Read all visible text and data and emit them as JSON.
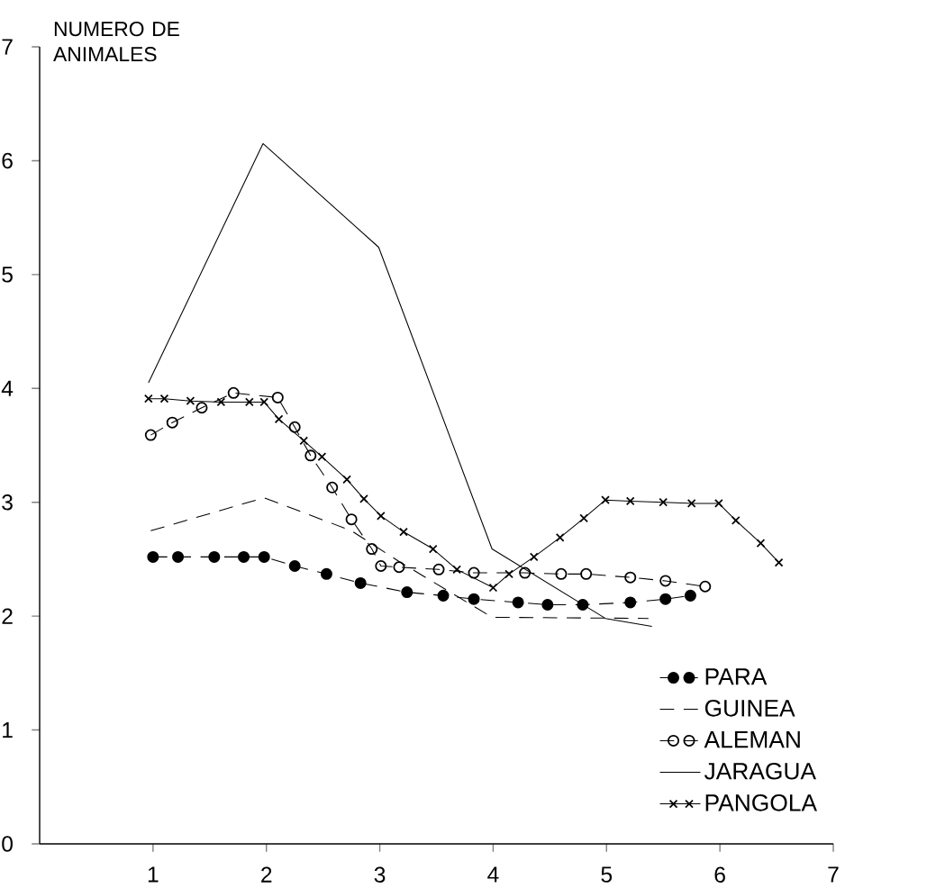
{
  "chart_data": {
    "type": "line",
    "ylabel": "NUMERO DE ANIMALES",
    "xlim": [
      0,
      7
    ],
    "ylim": [
      0,
      7
    ],
    "xticks": [
      1,
      2,
      3,
      4,
      5,
      6,
      7
    ],
    "yticks": [
      0,
      1,
      2,
      3,
      4,
      5,
      6,
      7
    ],
    "grid": false,
    "legend": "bottom right",
    "series": [
      {
        "name": "PARA",
        "color": "#000000",
        "line_style": "dashed",
        "marker": "circle",
        "x": [
          1.0,
          1.22,
          1.54,
          1.8,
          1.98,
          2.25,
          2.53,
          2.83,
          3.24,
          3.56,
          3.83,
          4.22,
          4.48,
          4.79,
          5.21,
          5.52,
          5.74
        ],
        "values": [
          2.52,
          2.52,
          2.52,
          2.52,
          2.52,
          2.44,
          2.37,
          2.29,
          2.21,
          2.18,
          2.15,
          2.12,
          2.1,
          2.1,
          2.12,
          2.15,
          2.18
        ]
      },
      {
        "name": "GUINEA",
        "color": "#000000",
        "line_style": "dashed",
        "marker": "none",
        "x": [
          0.98,
          1.98,
          2.75,
          3.17,
          3.99,
          5.37
        ],
        "values": [
          2.75,
          3.04,
          2.75,
          2.48,
          1.99,
          1.98
        ]
      },
      {
        "name": "ALEMAN",
        "color": "#000000",
        "line_style": "dashed",
        "marker": "circle",
        "x": [
          0.98,
          1.17,
          1.43,
          1.71,
          2.1,
          2.25,
          2.39,
          2.58,
          2.75,
          2.93,
          3.01,
          3.17,
          3.52,
          3.83,
          4.28,
          4.6,
          4.82,
          5.21,
          5.52,
          5.87
        ],
        "values": [
          3.59,
          3.7,
          3.83,
          3.96,
          3.92,
          3.66,
          3.41,
          3.13,
          2.85,
          2.59,
          2.44,
          2.43,
          2.41,
          2.38,
          2.38,
          2.37,
          2.37,
          2.34,
          2.31,
          2.26
        ]
      },
      {
        "name": "JARAGUA",
        "color": "#000000",
        "line_style": "solid",
        "marker": "none",
        "x": [
          0.96,
          1.97,
          2.99,
          3.99,
          4.99,
          5.4
        ],
        "values": [
          4.05,
          6.15,
          5.24,
          2.59,
          1.98,
          1.91
        ]
      },
      {
        "name": "PANGOLA",
        "color": "#000000",
        "line_style": "solid",
        "marker": "cross",
        "x": [
          0.96,
          1.1,
          1.33,
          1.6,
          1.85,
          1.98,
          2.11,
          2.33,
          2.49,
          2.71,
          2.86,
          3.01,
          3.21,
          3.47,
          3.68,
          4.0,
          4.14,
          4.36,
          4.59,
          4.8,
          4.99,
          5.21,
          5.5,
          5.75,
          5.99,
          6.14,
          6.36,
          6.52
        ],
        "values": [
          3.91,
          3.91,
          3.89,
          3.88,
          3.88,
          3.88,
          3.73,
          3.54,
          3.4,
          3.2,
          3.03,
          2.88,
          2.74,
          2.59,
          2.41,
          2.25,
          2.37,
          2.52,
          2.69,
          2.86,
          3.02,
          3.01,
          3.0,
          2.99,
          2.99,
          2.84,
          2.64,
          2.47
        ]
      }
    ]
  }
}
